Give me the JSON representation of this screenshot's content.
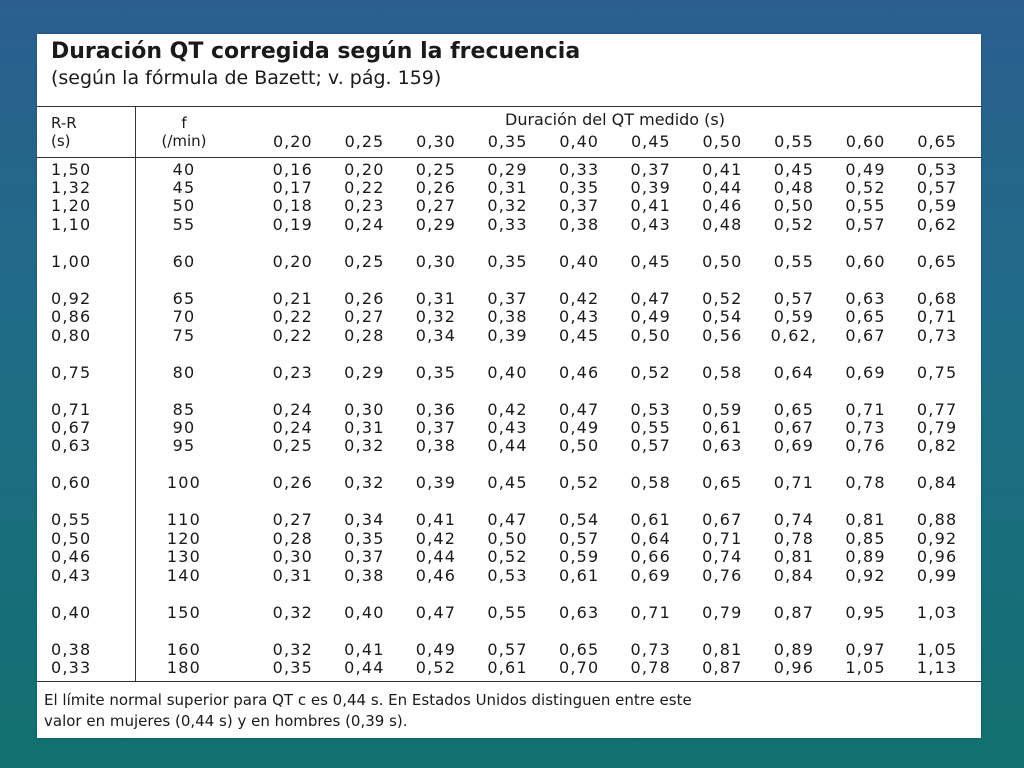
{
  "title": "Duración QT corregida según la frecuencia",
  "subtitle": "(según la fórmula de Bazett; v. pág. 159)",
  "header": {
    "rr_label_1": "R-R",
    "rr_label_2": "(s)",
    "f_label_1": "f",
    "f_label_2": "(/min)",
    "span_label": "Duración del QT medido (s)",
    "qt_columns": [
      "0,20",
      "0,25",
      "0,30",
      "0,35",
      "0,40",
      "0,45",
      "0,50",
      "0,55",
      "0,60",
      "0,65"
    ]
  },
  "rows": [
    {
      "rr": "1,50",
      "f": "40",
      "v": [
        "0,16",
        "0,20",
        "0,25",
        "0,29",
        "0,33",
        "0,37",
        "0,41",
        "0,45",
        "0,49",
        "0,53"
      ]
    },
    {
      "rr": "1,32",
      "f": "45",
      "v": [
        "0,17",
        "0,22",
        "0,26",
        "0,31",
        "0,35",
        "0,39",
        "0,44",
        "0,48",
        "0,52",
        "0,57"
      ]
    },
    {
      "rr": "1,20",
      "f": "50",
      "v": [
        "0,18",
        "0,23",
        "0,27",
        "0,32",
        "0,37",
        "0,41",
        "0,46",
        "0,50",
        "0,55",
        "0,59"
      ]
    },
    {
      "rr": "1,10",
      "f": "55",
      "v": [
        "0,19",
        "0,24",
        "0,29",
        "0,33",
        "0,38",
        "0,43",
        "0,48",
        "0,52",
        "0,57",
        "0,62"
      ]
    },
    {
      "rr": "1,00",
      "f": "60",
      "v": [
        "0,20",
        "0,25",
        "0,30",
        "0,35",
        "0,40",
        "0,45",
        "0,50",
        "0,55",
        "0,60",
        "0,65"
      ]
    },
    {
      "rr": "0,92",
      "f": "65",
      "v": [
        "0,21",
        "0,26",
        "0,31",
        "0,37",
        "0,42",
        "0,47",
        "0,52",
        "0,57",
        "0,63",
        "0,68"
      ]
    },
    {
      "rr": "0,86",
      "f": "70",
      "v": [
        "0,22",
        "0,27",
        "0,32",
        "0,38",
        "0,43",
        "0,49",
        "0,54",
        "0,59",
        "0,65",
        "0,71"
      ]
    },
    {
      "rr": "0,80",
      "f": "75",
      "v": [
        "0,22",
        "0,28",
        "0,34",
        "0,39",
        "0,45",
        "0,50",
        "0,56",
        "0,62,",
        "0,67",
        "0,73"
      ]
    },
    {
      "rr": "0,75",
      "f": "80",
      "v": [
        "0,23",
        "0,29",
        "0,35",
        "0,40",
        "0,46",
        "0,52",
        "0,58",
        "0,64",
        "0,69",
        "0,75"
      ]
    },
    {
      "rr": "0,71",
      "f": "85",
      "v": [
        "0,24",
        "0,30",
        "0,36",
        "0,42",
        "0,47",
        "0,53",
        "0,59",
        "0,65",
        "0,71",
        "0,77"
      ]
    },
    {
      "rr": "0,67",
      "f": "90",
      "v": [
        "0,24",
        "0,31",
        "0,37",
        "0,43",
        "0,49",
        "0,55",
        "0,61",
        "0,67",
        "0,73",
        "0,79"
      ]
    },
    {
      "rr": "0,63",
      "f": "95",
      "v": [
        "0,25",
        "0,32",
        "0,38",
        "0,44",
        "0,50",
        "0,57",
        "0,63",
        "0,69",
        "0,76",
        "0,82"
      ]
    },
    {
      "rr": "0,60",
      "f": "100",
      "v": [
        "0,26",
        "0,32",
        "0,39",
        "0,45",
        "0,52",
        "0,58",
        "0,65",
        "0,71",
        "0,78",
        "0,84"
      ]
    },
    {
      "rr": "0,55",
      "f": "110",
      "v": [
        "0,27",
        "0,34",
        "0,41",
        "0,47",
        "0,54",
        "0,61",
        "0,67",
        "0,74",
        "0,81",
        "0,88"
      ]
    },
    {
      "rr": "0,50",
      "f": "120",
      "v": [
        "0,28",
        "0,35",
        "0,42",
        "0,50",
        "0,57",
        "0,64",
        "0,71",
        "0,78",
        "0,85",
        "0,92"
      ]
    },
    {
      "rr": "0,46",
      "f": "130",
      "v": [
        "0,30",
        "0,37",
        "0,44",
        "0,52",
        "0,59",
        "0,66",
        "0,74",
        "0,81",
        "0,89",
        "0,96"
      ]
    },
    {
      "rr": "0,43",
      "f": "140",
      "v": [
        "0,31",
        "0,38",
        "0,46",
        "0,53",
        "0,61",
        "0,69",
        "0,76",
        "0,84",
        "0,92",
        "0,99"
      ]
    },
    {
      "rr": "0,40",
      "f": "150",
      "v": [
        "0,32",
        "0,40",
        "0,47",
        "0,55",
        "0,63",
        "0,71",
        "0,79",
        "0,87",
        "0,95",
        "1,03"
      ]
    },
    {
      "rr": "0,38",
      "f": "160",
      "v": [
        "0,32",
        "0,41",
        "0,49",
        "0,57",
        "0,65",
        "0,73",
        "0,81",
        "0,89",
        "0,97",
        "1,05"
      ]
    },
    {
      "rr": "0,33",
      "f": "180",
      "v": [
        "0,35",
        "0,44",
        "0,52",
        "0,61",
        "0,70",
        "0,78",
        "0,87",
        "0,96",
        "1,05",
        "1,13"
      ]
    }
  ],
  "footnote_1": "El límite normal superior para QT c es 0,44 s. En Estados Unidos distinguen entre este",
  "footnote_2": "valor en mujeres (0,44 s) y en hombres (0,39 s)."
}
